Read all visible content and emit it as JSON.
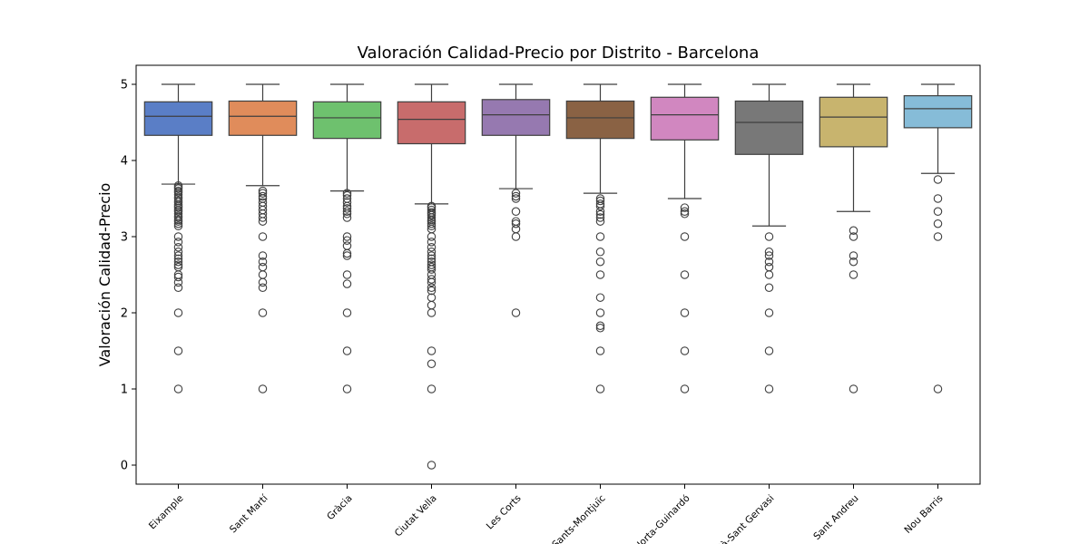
{
  "chart_data": {
    "type": "box",
    "title": "Valoración Calidad-Precio por Distrito - Barcelona",
    "xlabel": "",
    "ylabel": "Valoración Calidad-Precio",
    "ylim": [
      -0.25,
      5.25
    ],
    "yticks": [
      0,
      1,
      2,
      3,
      4,
      5
    ],
    "grid": false,
    "categories": [
      "Eixample",
      "Sant Martí",
      "Gràcia",
      "Ciutat Vella",
      "Les Corts",
      "Sants-Montjuïc",
      "Horta-Guinardó",
      "Sarrià-Sant Gervasi",
      "Sant Andreu",
      "Nou Barris"
    ],
    "colors": [
      "#5a7ec6",
      "#e08c5b",
      "#6ec16e",
      "#c86c6c",
      "#9679b0",
      "#8a6244",
      "#d187c0",
      "#787878",
      "#c8b46e",
      "#86bcd8"
    ],
    "boxes": [
      {
        "whisker_low": 3.69,
        "q1": 4.33,
        "median": 4.58,
        "q3": 4.77,
        "whisker_high": 5.0,
        "outliers": [
          3.67,
          3.65,
          3.63,
          3.6,
          3.58,
          3.55,
          3.52,
          3.5,
          3.47,
          3.45,
          3.42,
          3.4,
          3.38,
          3.35,
          3.33,
          3.3,
          3.27,
          3.25,
          3.22,
          3.2,
          3.17,
          3.14,
          3.0,
          2.93,
          2.86,
          2.8,
          2.75,
          2.71,
          2.67,
          2.63,
          2.6,
          2.5,
          2.47,
          2.4,
          2.33,
          2.0,
          1.5,
          1.0
        ]
      },
      {
        "whisker_low": 3.67,
        "q1": 4.33,
        "median": 4.58,
        "q3": 4.78,
        "whisker_high": 5.0,
        "outliers": [
          3.6,
          3.57,
          3.53,
          3.5,
          3.45,
          3.4,
          3.35,
          3.3,
          3.25,
          3.2,
          3.0,
          2.75,
          2.67,
          2.6,
          2.5,
          2.4,
          2.33,
          2.0,
          1.0
        ]
      },
      {
        "whisker_low": 3.6,
        "q1": 4.29,
        "median": 4.56,
        "q3": 4.77,
        "whisker_high": 5.0,
        "outliers": [
          3.57,
          3.54,
          3.5,
          3.45,
          3.4,
          3.37,
          3.33,
          3.3,
          3.25,
          3.0,
          2.95,
          2.88,
          2.78,
          2.75,
          2.5,
          2.38,
          2.0,
          1.5,
          1.0
        ]
      },
      {
        "whisker_low": 3.43,
        "q1": 4.22,
        "median": 4.54,
        "q3": 4.77,
        "whisker_high": 5.0,
        "outliers": [
          3.4,
          3.38,
          3.35,
          3.32,
          3.3,
          3.28,
          3.25,
          3.22,
          3.2,
          3.17,
          3.14,
          3.1,
          3.0,
          2.93,
          2.86,
          2.8,
          2.75,
          2.71,
          2.67,
          2.63,
          2.6,
          2.57,
          2.5,
          2.44,
          2.4,
          2.33,
          2.29,
          2.2,
          2.1,
          2.0,
          1.5,
          1.33,
          1.0,
          0.0
        ]
      },
      {
        "whisker_low": 3.63,
        "q1": 4.33,
        "median": 4.6,
        "q3": 4.8,
        "whisker_high": 5.0,
        "outliers": [
          3.57,
          3.53,
          3.5,
          3.33,
          3.2,
          3.17,
          3.1,
          3.0,
          2.0
        ]
      },
      {
        "whisker_low": 3.57,
        "q1": 4.29,
        "median": 4.56,
        "q3": 4.78,
        "whisker_high": 5.0,
        "outliers": [
          3.5,
          3.47,
          3.43,
          3.4,
          3.33,
          3.29,
          3.25,
          3.2,
          3.0,
          2.8,
          2.67,
          2.5,
          2.2,
          2.0,
          1.83,
          1.8,
          1.5,
          1.0
        ]
      },
      {
        "whisker_low": 3.5,
        "q1": 4.27,
        "median": 4.6,
        "q3": 4.83,
        "whisker_high": 5.0,
        "outliers": [
          3.38,
          3.33,
          3.3,
          3.0,
          2.5,
          2.0,
          1.5,
          1.0
        ]
      },
      {
        "whisker_low": 3.14,
        "q1": 4.08,
        "median": 4.5,
        "q3": 4.78,
        "whisker_high": 5.0,
        "outliers": [
          3.0,
          2.8,
          2.75,
          2.67,
          2.6,
          2.5,
          2.33,
          2.0,
          1.5,
          1.0
        ]
      },
      {
        "whisker_low": 3.33,
        "q1": 4.18,
        "median": 4.57,
        "q3": 4.83,
        "whisker_high": 5.0,
        "outliers": [
          3.08,
          3.0,
          2.75,
          2.67,
          2.5,
          1.0
        ]
      },
      {
        "whisker_low": 3.83,
        "q1": 4.43,
        "median": 4.68,
        "q3": 4.85,
        "whisker_high": 5.0,
        "outliers": [
          3.75,
          3.5,
          3.33,
          3.17,
          3.0,
          1.0
        ]
      }
    ]
  }
}
